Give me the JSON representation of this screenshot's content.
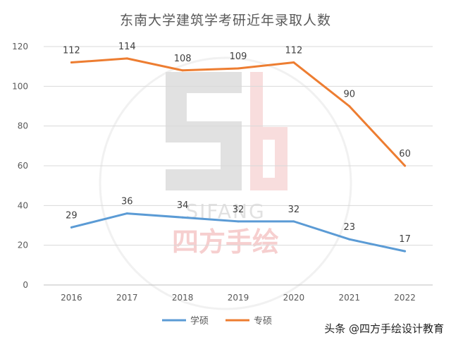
{
  "chart_data": {
    "type": "line",
    "title": "东南大学建筑学考研近年录取人数",
    "categories": [
      "2016",
      "2017",
      "2018",
      "2019",
      "2020",
      "2021",
      "2022"
    ],
    "series": [
      {
        "name": "学硕",
        "color": "#5b9bd5",
        "values": [
          29,
          36,
          34,
          32,
          32,
          23,
          17
        ]
      },
      {
        "name": "专硕",
        "color": "#ed7d31",
        "values": [
          112,
          114,
          108,
          109,
          112,
          90,
          60
        ]
      }
    ],
    "ylim": [
      0,
      120
    ],
    "yticks": [
      0,
      20,
      40,
      60,
      80,
      100,
      120
    ],
    "grid": true,
    "legend": "bottom"
  },
  "watermark": {
    "brand": "SIFANG",
    "brand_cn": "四方手绘",
    "credit": "头条 @四方手绘设计教育"
  }
}
